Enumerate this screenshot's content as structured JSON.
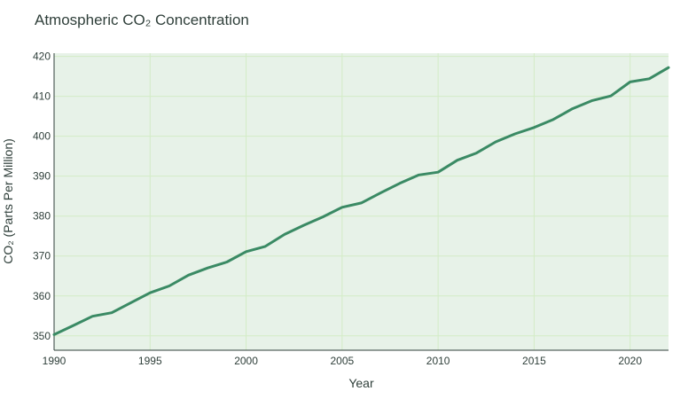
{
  "chart_data": {
    "type": "line",
    "title": "Atmospheric CO₂ Concentration",
    "xlabel": "Year",
    "ylabel": "CO₂ (Parts Per Million)",
    "xlim": [
      1990,
      2022
    ],
    "ylim": [
      346.4,
      420.8
    ],
    "x_ticks": [
      1990,
      1995,
      2000,
      2005,
      2010,
      2015,
      2020
    ],
    "y_ticks": [
      350,
      360,
      370,
      380,
      390,
      400,
      410,
      420
    ],
    "grid": true,
    "legend": "none",
    "colors": {
      "line": "#3a8a64",
      "plot_background": "#e7f2e8",
      "grid": "#d3ecc6",
      "axis": "#2f3f3a"
    },
    "series": [
      {
        "x": [
          1990,
          1991,
          1992,
          1993,
          1994,
          1995,
          1996,
          1997,
          1998,
          1999,
          2000,
          2001,
          2002,
          2003,
          2004,
          2005,
          2006,
          2007,
          2008,
          2009,
          2010,
          2011,
          2012,
          2013,
          2014,
          2015,
          2016,
          2017,
          2018,
          2019,
          2020,
          2021,
          2022
        ],
        "values": [
          350.3,
          352.6,
          354.9,
          355.8,
          358.3,
          360.8,
          362.5,
          365.2,
          367.0,
          368.5,
          371.1,
          372.4,
          375.4,
          377.7,
          379.8,
          382.2,
          383.3,
          385.8,
          388.2,
          390.3,
          391.0,
          394.0,
          395.8,
          398.6,
          400.6,
          402.2,
          404.2,
          406.9,
          408.9,
          410.1,
          413.6,
          414.4,
          417.2
        ]
      }
    ]
  }
}
